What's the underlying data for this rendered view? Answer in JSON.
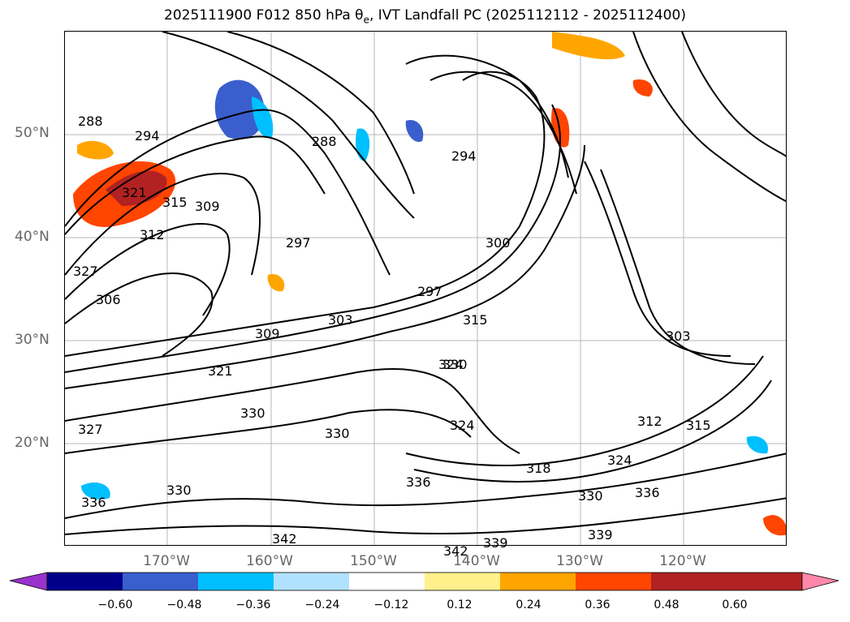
{
  "title": "2025111900 F012 850 hPa θ",
  "title_sub": "e",
  "title_rest": ", IVT Landfall PC (2025112112 - 2025112400)",
  "lat_labels": [
    "50°N",
    "40°N",
    "30°N",
    "20°N"
  ],
  "lon_labels": [
    "170°W",
    "160°W",
    "150°W",
    "140°W",
    "130°W",
    "120°W"
  ],
  "contour_labels": [
    "288",
    "294",
    "288",
    "294",
    "315",
    "309",
    "321",
    "312",
    "297",
    "300",
    "297",
    "327",
    "306",
    "303",
    "309",
    "321",
    "315",
    "303",
    "324",
    "330",
    "327",
    "330",
    "336",
    "318",
    "324",
    "312",
    "315",
    "336",
    "330",
    "330",
    "339",
    "339",
    "342",
    "342",
    "336",
    "330",
    "324"
  ],
  "colorbar": {
    "ticks": [
      "−0.60",
      "−0.48",
      "−0.36",
      "−0.24",
      "−0.12",
      "0.12",
      "0.24",
      "0.36",
      "0.48",
      "0.60"
    ],
    "colors": [
      "#9933cc",
      "#00008b",
      "#3a5fcd",
      "#00bfff",
      "#b0e2ff",
      "#ffffff",
      "#fff08c",
      "#ffa500",
      "#ff4500",
      "#b22222",
      "#ff88aa"
    ],
    "extend": "both"
  },
  "map": {
    "field": "850 hPa theta-e contours (black) with IVT landfall PC shading",
    "gridlines": true
  }
}
